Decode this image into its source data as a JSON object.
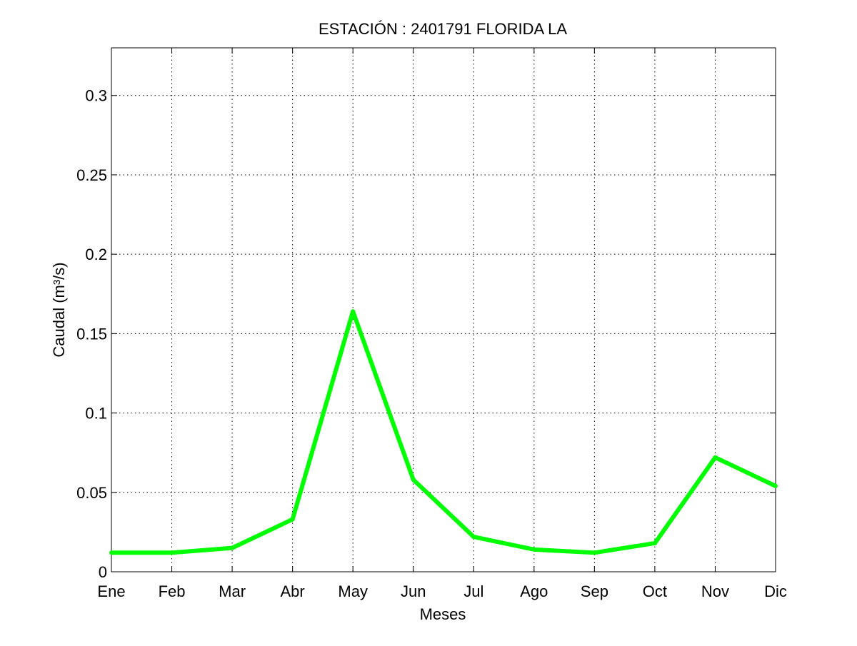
{
  "chart_data": {
    "type": "line",
    "title": "ESTACIÓN :  2401791  FLORIDA LA",
    "xlabel": "Meses",
    "ylabel": "Caudal (m³/s)",
    "categories": [
      "Ene",
      "Feb",
      "Mar",
      "Abr",
      "May",
      "Jun",
      "Jul",
      "Ago",
      "Sep",
      "Oct",
      "Nov",
      "Dic"
    ],
    "series": [
      {
        "values": [
          0.012,
          0.012,
          0.015,
          0.033,
          0.164,
          0.058,
          0.022,
          0.014,
          0.012,
          0.018,
          0.072,
          0.054
        ],
        "color": "#00ff00"
      }
    ],
    "ylim": [
      0,
      0.33
    ],
    "yticks": [
      0,
      0.05,
      0.1,
      0.15,
      0.2,
      0.25,
      0.3
    ],
    "ytick_labels": [
      "0",
      "0.05",
      "0.1",
      "0.15",
      "0.2",
      "0.25",
      "0.3"
    ],
    "grid": true,
    "grid_style": "dotted"
  }
}
